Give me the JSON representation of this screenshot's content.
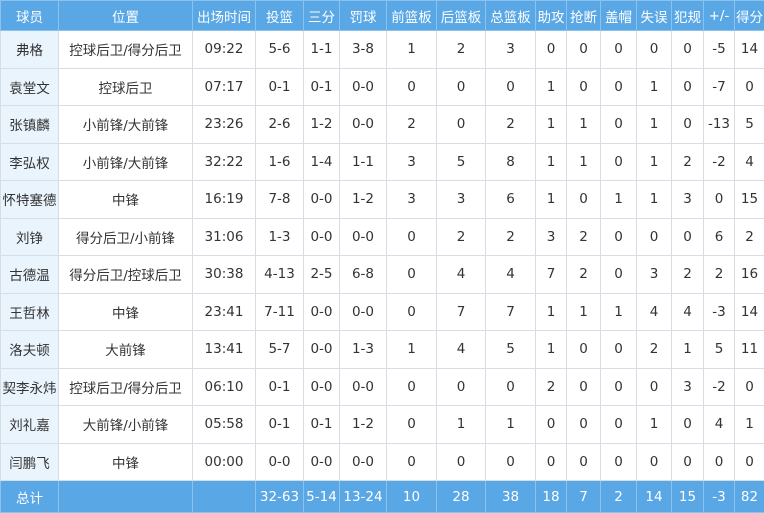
{
  "table": {
    "header": [
      "球员",
      "位置",
      "出场时间",
      "投篮",
      "三分",
      "罚球",
      "前篮板",
      "后篮板",
      "总篮板",
      "助攻",
      "抢断",
      "盖帽",
      "失误",
      "犯规",
      "+/-",
      "得分"
    ],
    "rows": [
      [
        "弗格",
        "控球后卫/得分后卫",
        "09:22",
        "5-6",
        "1-1",
        "3-8",
        1,
        2,
        3,
        0,
        0,
        0,
        0,
        0,
        -5,
        14
      ],
      [
        "袁堂文",
        "控球后卫",
        "07:17",
        "0-1",
        "0-1",
        "0-0",
        0,
        0,
        0,
        1,
        0,
        0,
        1,
        0,
        -7,
        0
      ],
      [
        "张镇麟",
        "小前锋/大前锋",
        "23:26",
        "2-6",
        "1-2",
        "0-0",
        2,
        0,
        2,
        1,
        1,
        0,
        1,
        0,
        -13,
        5
      ],
      [
        "李弘权",
        "小前锋/大前锋",
        "32:22",
        "1-6",
        "1-4",
        "1-1",
        3,
        5,
        8,
        1,
        1,
        0,
        1,
        2,
        -2,
        4
      ],
      [
        "怀特塞德",
        "中锋",
        "16:19",
        "7-8",
        "0-0",
        "1-2",
        3,
        3,
        6,
        1,
        0,
        1,
        1,
        3,
        0,
        15
      ],
      [
        "刘铮",
        "得分后卫/小前锋",
        "31:06",
        "1-3",
        "0-0",
        "0-0",
        0,
        2,
        2,
        3,
        2,
        0,
        0,
        0,
        6,
        2
      ],
      [
        "古德温",
        "得分后卫/控球后卫",
        "30:38",
        "4-13",
        "2-5",
        "6-8",
        0,
        4,
        4,
        7,
        2,
        0,
        3,
        2,
        2,
        16
      ],
      [
        "王哲林",
        "中锋",
        "23:41",
        "7-11",
        "0-0",
        "0-0",
        0,
        7,
        7,
        1,
        1,
        1,
        4,
        4,
        -3,
        14
      ],
      [
        "洛夫顿",
        "大前锋",
        "13:41",
        "5-7",
        "0-0",
        "1-3",
        1,
        4,
        5,
        1,
        0,
        0,
        2,
        1,
        5,
        11
      ],
      [
        "契李永炜",
        "控球后卫/得分后卫",
        "06:10",
        "0-1",
        "0-0",
        "0-0",
        0,
        0,
        0,
        2,
        0,
        0,
        0,
        3,
        -2,
        0
      ],
      [
        "刘礼嘉",
        "大前锋/小前锋",
        "05:58",
        "0-1",
        "0-1",
        "1-2",
        0,
        1,
        1,
        0,
        0,
        0,
        1,
        0,
        4,
        1
      ],
      [
        "闫鹏飞",
        "中锋",
        "00:00",
        "0-0",
        "0-0",
        "0-0",
        0,
        0,
        0,
        0,
        0,
        0,
        0,
        0,
        0,
        0
      ]
    ],
    "total": [
      "总计",
      null,
      null,
      "32-63",
      "5-14",
      "13-24",
      10,
      28,
      38,
      18,
      7,
      2,
      14,
      15,
      -3,
      82
    ]
  }
}
